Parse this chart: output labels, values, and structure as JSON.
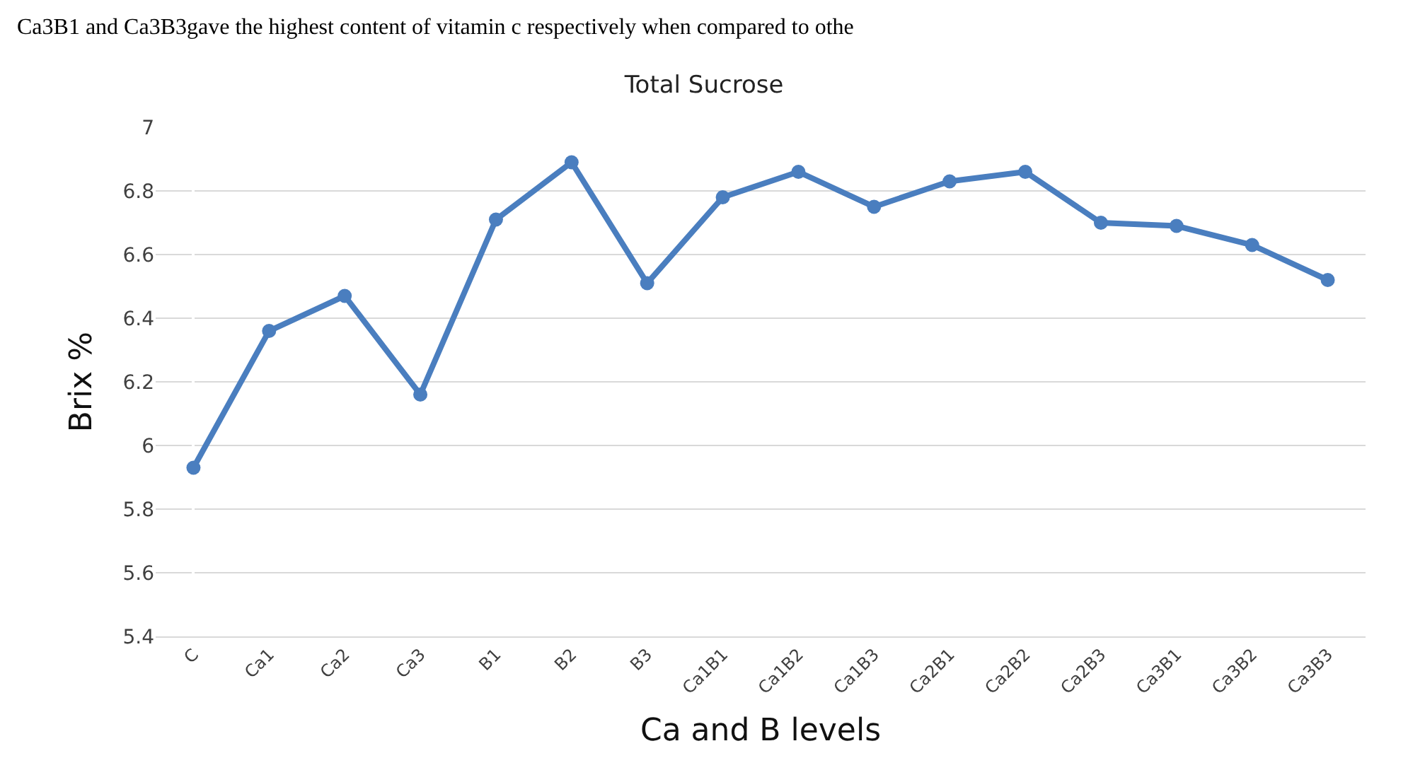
{
  "chart_data": {
    "type": "line",
    "title": "Total Sucrose",
    "xlabel": "Ca and B levels",
    "ylabel": "Brix %",
    "annotations": [
      "Ca3B1 and Ca3B3gave the highest content of vitamin c respectively when compared to othe"
    ],
    "categories": [
      "C",
      "Ca1",
      "Ca2",
      "Ca3",
      "B1",
      "B2",
      "B3",
      "Ca1B1",
      "Ca1B2",
      "Ca1B3",
      "Ca2B1",
      "Ca2B2",
      "Ca2B3",
      "Ca3B1",
      "Ca3B2",
      "Ca3B3"
    ],
    "series": [
      {
        "color": "#4a7ebf",
        "values": [
          5.93,
          6.36,
          6.47,
          6.16,
          6.71,
          6.89,
          6.51,
          6.78,
          6.86,
          6.75,
          6.83,
          6.86,
          6.7,
          6.69,
          6.63,
          6.52
        ]
      }
    ],
    "ylim": [
      5.4,
      7
    ],
    "yticks": [
      5.4,
      5.6,
      5.8,
      6,
      6.2,
      6.4,
      6.6,
      6.8,
      7
    ],
    "grid": "y",
    "marker": "circle",
    "line_style": "solid"
  }
}
